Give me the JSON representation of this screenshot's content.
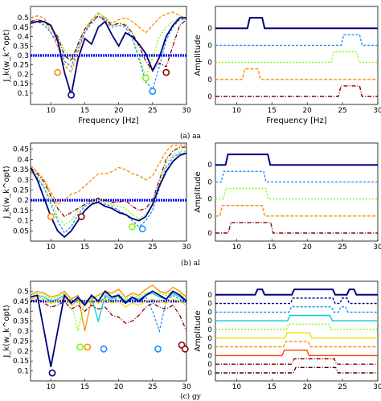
{
  "captions": [
    "(a) aa",
    "(b) al",
    "(c) gy"
  ],
  "chart_data": [
    {
      "type": "line",
      "panel": "a-left",
      "ylabel": "J_k(w_k^opt)",
      "xlabel": "Frequency [Hz]",
      "xlim": [
        7,
        30
      ],
      "ylim": [
        0.04,
        0.56
      ],
      "xticks": [
        "10",
        "15",
        "20",
        "25",
        "30"
      ],
      "yticks": [
        "0.1",
        "0.15",
        "0.2",
        "0.25",
        "0.3",
        "0.35",
        "0.4",
        "0.45",
        "0.5"
      ],
      "ytick_values": [
        0.1,
        0.15,
        0.2,
        0.25,
        0.3,
        0.35,
        0.4,
        0.45,
        0.5
      ],
      "threshold": 0.3,
      "x": [
        7,
        8,
        9,
        10,
        11,
        12,
        13,
        14,
        15,
        16,
        17,
        18,
        19,
        20,
        21,
        22,
        23,
        24,
        25,
        26,
        27,
        28,
        29,
        30
      ],
      "series": [
        {
          "color": "#ff8c00",
          "dash": "4 2",
          "values": [
            0.5,
            0.51,
            0.5,
            0.42,
            0.35,
            0.25,
            0.21,
            0.32,
            0.42,
            0.49,
            0.52,
            0.5,
            0.47,
            0.49,
            0.5,
            0.48,
            0.45,
            0.42,
            0.46,
            0.5,
            0.52,
            0.53,
            0.51,
            0.5
          ]
        },
        {
          "color": "#7cfc00",
          "dash": "2 2",
          "values": [
            0.47,
            0.48,
            0.47,
            0.44,
            0.4,
            0.33,
            0.28,
            0.36,
            0.44,
            0.49,
            0.53,
            0.5,
            0.46,
            0.47,
            0.47,
            0.42,
            0.3,
            0.18,
            0.29,
            0.4,
            0.45,
            0.48,
            0.5,
            0.49
          ]
        },
        {
          "color": "#1e90ff",
          "dash": "3 2",
          "values": [
            0.48,
            0.48,
            0.46,
            0.42,
            0.37,
            0.27,
            0.24,
            0.34,
            0.42,
            0.47,
            0.51,
            0.48,
            0.45,
            0.46,
            0.45,
            0.39,
            0.28,
            0.16,
            0.12,
            0.24,
            0.38,
            0.45,
            0.49,
            0.49
          ]
        },
        {
          "color": "#8b0000",
          "dash": "5 2 1 2",
          "values": [
            0.48,
            0.49,
            0.48,
            0.45,
            0.4,
            0.3,
            0.27,
            0.36,
            0.44,
            0.48,
            0.51,
            0.49,
            0.46,
            0.47,
            0.46,
            0.42,
            0.35,
            0.27,
            0.22,
            0.26,
            0.24,
            0.35,
            0.46,
            0.49
          ]
        },
        {
          "color": "#000080",
          "dash": "",
          "values": [
            0.47,
            0.48,
            0.48,
            0.46,
            0.38,
            0.21,
            0.09,
            0.28,
            0.39,
            0.36,
            0.45,
            0.48,
            0.41,
            0.35,
            0.42,
            0.4,
            0.36,
            0.31,
            0.22,
            0.29,
            0.4,
            0.46,
            0.5,
            0.5
          ]
        }
      ],
      "markers": [
        {
          "x": 11,
          "y": 0.21,
          "color": "#ff8c00"
        },
        {
          "x": 13,
          "y": 0.09,
          "color": "#000080"
        },
        {
          "x": 24,
          "y": 0.18,
          "color": "#7cfc00"
        },
        {
          "x": 25,
          "y": 0.11,
          "color": "#1e90ff"
        },
        {
          "x": 27,
          "y": 0.21,
          "color": "#8b0000"
        }
      ]
    },
    {
      "type": "line",
      "panel": "a-right",
      "ylabel": "Amplitude",
      "xlabel": "Frequency [Hz]",
      "xlim": [
        7,
        30
      ],
      "xticks": [
        "10",
        "15",
        "20",
        "25",
        "30"
      ],
      "level_label": "0",
      "series": [
        {
          "color": "#000080",
          "dash": "",
          "start": 11.7,
          "end": 13.8
        },
        {
          "color": "#1e90ff",
          "dash": "3 2",
          "start": 25.0,
          "end": 27.6
        },
        {
          "color": "#7cfc00",
          "dash": "2 2",
          "start": 23.6,
          "end": 27.2
        },
        {
          "color": "#ff8c00",
          "dash": "4 2",
          "start": 11.0,
          "end": 13.2
        },
        {
          "color": "#8b0000",
          "dash": "5 2 1 2",
          "start": 24.6,
          "end": 27.6
        }
      ]
    },
    {
      "type": "line",
      "panel": "b-left",
      "ylabel": "J_k(w_k^opt)",
      "xlabel": "",
      "xlim": [
        7,
        30
      ],
      "ylim": [
        0,
        0.48
      ],
      "xticks": [
        "10",
        "15",
        "20",
        "25",
        "30"
      ],
      "yticks": [
        "0.05",
        "0.1",
        "0.15",
        "0.2",
        "0.25",
        "0.3",
        "0.35",
        "0.4",
        "0.45"
      ],
      "ytick_values": [
        0.05,
        0.1,
        0.15,
        0.2,
        0.25,
        0.3,
        0.35,
        0.4,
        0.45
      ],
      "threshold": 0.2,
      "x": [
        7,
        8,
        9,
        10,
        11,
        12,
        13,
        14,
        15,
        16,
        17,
        18,
        19,
        20,
        21,
        22,
        23,
        24,
        25,
        26,
        27,
        28,
        29,
        30
      ],
      "series": [
        {
          "color": "#ff8c00",
          "dash": "4 2",
          "values": [
            0.37,
            0.34,
            0.3,
            0.24,
            0.18,
            0.2,
            0.23,
            0.24,
            0.27,
            0.3,
            0.33,
            0.33,
            0.34,
            0.36,
            0.35,
            0.33,
            0.32,
            0.3,
            0.32,
            0.38,
            0.44,
            0.47,
            0.47,
            0.47
          ]
        },
        {
          "color": "#7cfc00",
          "dash": "2 2",
          "values": [
            0.35,
            0.32,
            0.27,
            0.2,
            0.12,
            0.08,
            0.1,
            0.15,
            0.18,
            0.2,
            0.2,
            0.19,
            0.18,
            0.17,
            0.16,
            0.13,
            0.11,
            0.13,
            0.17,
            0.28,
            0.38,
            0.42,
            0.44,
            0.44
          ]
        },
        {
          "color": "#1e90ff",
          "dash": "3 2",
          "values": [
            0.34,
            0.31,
            0.26,
            0.18,
            0.1,
            0.04,
            0.07,
            0.13,
            0.17,
            0.19,
            0.19,
            0.18,
            0.17,
            0.15,
            0.13,
            0.1,
            0.07,
            0.1,
            0.15,
            0.26,
            0.36,
            0.41,
            0.43,
            0.43
          ]
        },
        {
          "color": "#8b0000",
          "dash": "5 2 1 2",
          "values": [
            0.36,
            0.33,
            0.29,
            0.22,
            0.16,
            0.12,
            0.14,
            0.16,
            0.18,
            0.2,
            0.21,
            0.2,
            0.19,
            0.19,
            0.2,
            0.17,
            0.15,
            0.16,
            0.2,
            0.3,
            0.4,
            0.44,
            0.46,
            0.46
          ]
        },
        {
          "color": "#000080",
          "dash": "",
          "values": [
            0.36,
            0.3,
            0.21,
            0.12,
            0.05,
            0.02,
            0.05,
            0.1,
            0.15,
            0.18,
            0.19,
            0.17,
            0.16,
            0.14,
            0.13,
            0.11,
            0.1,
            0.12,
            0.18,
            0.27,
            0.34,
            0.39,
            0.42,
            0.43
          ]
        }
      ],
      "markers": [
        {
          "x": 10,
          "y": 0.12,
          "color": "#ff8c00"
        },
        {
          "x": 14.5,
          "y": 0.12,
          "color": "#8b0000"
        },
        {
          "x": 22,
          "y": 0.07,
          "color": "#7cfc00"
        },
        {
          "x": 23.5,
          "y": 0.06,
          "color": "#1e90ff"
        }
      ]
    },
    {
      "type": "line",
      "panel": "b-right",
      "ylabel": "Amplitude",
      "xlabel": "",
      "xlim": [
        7,
        30
      ],
      "xticks": [
        "10",
        "15",
        "20",
        "25",
        "30"
      ],
      "level_label": "0",
      "series": [
        {
          "color": "#000080",
          "dash": "",
          "start": 8.6,
          "end": 14.6
        },
        {
          "color": "#1e90ff",
          "dash": "3 2",
          "start": 8.0,
          "end": 14.0
        },
        {
          "color": "#7cfc00",
          "dash": "2 2",
          "start": 8.3,
          "end": 14.3
        },
        {
          "color": "#ff8c00",
          "dash": "4 2",
          "start": 7.8,
          "end": 13.8
        },
        {
          "color": "#8b0000",
          "dash": "5 2 1 2",
          "start": 9.0,
          "end": 15.0
        }
      ]
    },
    {
      "type": "line",
      "panel": "c-left",
      "ylabel": "J_k(w_k^opt)",
      "xlabel": "",
      "xlim": [
        7,
        30
      ],
      "ylim": [
        0.05,
        0.55
      ],
      "xticks": [
        "10",
        "15",
        "20",
        "25",
        "30"
      ],
      "yticks": [
        "0.1",
        "0.15",
        "0.2",
        "0.25",
        "0.3",
        "0.35",
        "0.4",
        "0.45",
        "0.5"
      ],
      "ytick_values": [
        0.1,
        0.15,
        0.2,
        0.25,
        0.3,
        0.35,
        0.4,
        0.45,
        0.5
      ],
      "threshold": 0.45,
      "x": [
        7,
        8,
        9,
        10,
        11,
        12,
        13,
        14,
        15,
        16,
        17,
        18,
        19,
        20,
        21,
        22,
        23,
        24,
        25,
        26,
        27,
        28,
        29,
        30
      ],
      "series": [
        {
          "color": "#ff8c00",
          "dash": "",
          "values": [
            0.48,
            0.5,
            0.49,
            0.47,
            0.48,
            0.5,
            0.46,
            0.48,
            0.3,
            0.46,
            0.48,
            0.5,
            0.49,
            0.51,
            0.47,
            0.49,
            0.48,
            0.51,
            0.53,
            0.5,
            0.49,
            0.52,
            0.5,
            0.47
          ]
        },
        {
          "color": "#7cfc00",
          "dash": "2 2",
          "values": [
            0.47,
            0.49,
            0.48,
            0.46,
            0.47,
            0.49,
            0.45,
            0.3,
            0.45,
            0.47,
            0.48,
            0.49,
            0.47,
            0.49,
            0.46,
            0.48,
            0.47,
            0.49,
            0.5,
            0.49,
            0.48,
            0.5,
            0.49,
            0.46
          ]
        },
        {
          "color": "#00ced1",
          "dash": "",
          "values": [
            0.47,
            0.48,
            0.47,
            0.45,
            0.46,
            0.48,
            0.44,
            0.46,
            0.44,
            0.47,
            0.35,
            0.48,
            0.46,
            0.48,
            0.45,
            0.47,
            0.46,
            0.48,
            0.49,
            0.47,
            0.46,
            0.49,
            0.47,
            0.45
          ]
        },
        {
          "color": "#1e90ff",
          "dash": "3 2",
          "values": [
            0.46,
            0.47,
            0.46,
            0.44,
            0.45,
            0.47,
            0.43,
            0.45,
            0.43,
            0.46,
            0.44,
            0.47,
            0.45,
            0.47,
            0.44,
            0.46,
            0.45,
            0.47,
            0.4,
            0.3,
            0.45,
            0.48,
            0.46,
            0.44
          ]
        },
        {
          "color": "#ffd700",
          "dash": "",
          "values": [
            0.46,
            0.47,
            0.46,
            0.44,
            0.45,
            0.47,
            0.43,
            0.45,
            0.43,
            0.46,
            0.44,
            0.46,
            0.44,
            0.45,
            0.42,
            0.44,
            0.43,
            0.45,
            0.46,
            0.45,
            0.44,
            0.46,
            0.45,
            0.43
          ]
        },
        {
          "color": "#8b0000",
          "dash": "5 2 1 2",
          "values": [
            0.45,
            0.46,
            0.44,
            0.42,
            0.43,
            0.45,
            0.41,
            0.43,
            0.4,
            0.43,
            0.41,
            0.42,
            0.38,
            0.37,
            0.34,
            0.35,
            0.38,
            0.42,
            0.44,
            0.42,
            0.41,
            0.43,
            0.38,
            0.3
          ]
        },
        {
          "color": "#000080",
          "dash": "",
          "values": [
            0.47,
            0.48,
            0.3,
            0.12,
            0.3,
            0.48,
            0.44,
            0.47,
            0.43,
            0.48,
            0.45,
            0.5,
            0.47,
            0.48,
            0.44,
            0.47,
            0.45,
            0.48,
            0.5,
            0.48,
            0.46,
            0.5,
            0.48,
            0.45
          ]
        }
      ],
      "markers": [
        {
          "x": 10.2,
          "y": 0.09,
          "color": "#000080"
        },
        {
          "x": 14.3,
          "y": 0.22,
          "color": "#7cfc00"
        },
        {
          "x": 15.4,
          "y": 0.22,
          "color": "#ff8c00"
        },
        {
          "x": 17.8,
          "y": 0.21,
          "color": "#1e90ff"
        },
        {
          "x": 25.8,
          "y": 0.21,
          "color": "#1e90ff"
        },
        {
          "x": 29.3,
          "y": 0.23,
          "color": "#8b0000"
        },
        {
          "x": 29.8,
          "y": 0.21,
          "color": "#8b0000"
        }
      ]
    },
    {
      "type": "line",
      "panel": "c-right",
      "ylabel": "Amplitude",
      "xlabel": "",
      "xlim": [
        7,
        30
      ],
      "xticks": [
        "10",
        "15",
        "20",
        "25",
        "30"
      ],
      "level_label": "0",
      "series": [
        {
          "color": "#000080",
          "dash": "",
          "start": [
            12.8,
            18.0,
            25.8
          ],
          "end": [
            13.8,
            23.8,
            26.8
          ]
        },
        {
          "color": "#00008b",
          "dash": "3 2",
          "start": [
            17.8,
            24.8
          ],
          "end": [
            23.8,
            25.8
          ]
        },
        {
          "color": "#1e90ff",
          "dash": "3 2",
          "start": [
            17.6,
            24.6
          ],
          "end": [
            23.6,
            25.6
          ]
        },
        {
          "color": "#00ced1",
          "dash": "",
          "start": [
            17.4
          ],
          "end": [
            23.4
          ]
        },
        {
          "color": "#7cfc00",
          "dash": "2 2",
          "start": [
            17.2
          ],
          "end": [
            23.2
          ]
        },
        {
          "color": "#ffd700",
          "dash": "",
          "start": [
            17.0
          ],
          "end": [
            20.5
          ]
        },
        {
          "color": "#ff8c00",
          "dash": "4 2",
          "start": [
            16.8
          ],
          "end": [
            20.3
          ]
        },
        {
          "color": "#ff4500",
          "dash": "",
          "start": [
            16.6
          ],
          "end": [
            20.1
          ]
        },
        {
          "color": "#8b0000",
          "dash": "5 2 1 2",
          "start": [
            18.0
          ],
          "end": [
            24.0
          ]
        },
        {
          "color": "#4b0000",
          "dash": "5 2 1 2",
          "start": [
            18.2
          ],
          "end": [
            24.2
          ]
        }
      ]
    }
  ]
}
